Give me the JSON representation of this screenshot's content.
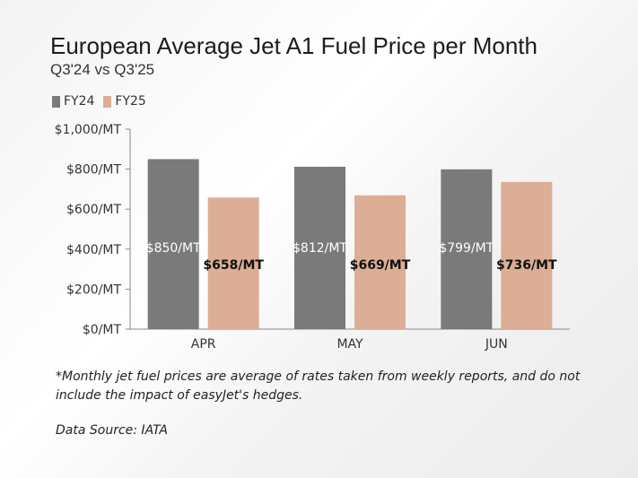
{
  "chart_data": {
    "type": "bar",
    "title": "European Average Jet A1 Fuel Price per Month",
    "subtitle": "Q3'24 vs Q3'25",
    "categories": [
      "APR",
      "MAY",
      "JUN"
    ],
    "series": [
      {
        "name": "FY24",
        "values": [
          850,
          812,
          799
        ],
        "labels": [
          "$850/MT",
          "$812/MT",
          "$799/MT"
        ],
        "color": "#7a7a7a",
        "label_color": "#ffffff"
      },
      {
        "name": "FY25",
        "values": [
          658,
          669,
          736
        ],
        "labels": [
          "$658/MT",
          "$669/MT",
          "$736/MT"
        ],
        "color": "#dcae95",
        "label_color": "#111111"
      }
    ],
    "ylim": [
      0,
      1000
    ],
    "yticks": [
      0,
      200,
      400,
      600,
      800,
      1000
    ],
    "ytick_labels": [
      "$0/MT",
      "$200/MT",
      "$400/MT",
      "$600/MT",
      "$800/MT",
      "$1,000/MT"
    ],
    "xlabel": "",
    "ylabel": "",
    "grid": false,
    "legend": "top-left"
  },
  "footnote": "*Monthly jet fuel prices are average of rates taken from weekly reports, and do not include the impact of easyJet's hedges.",
  "source": "Data Source: IATA"
}
